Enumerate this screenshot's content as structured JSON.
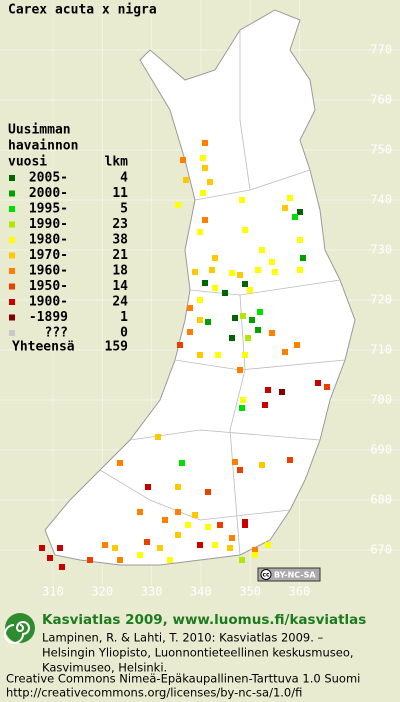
{
  "title": "Carex acuta x nigra",
  "legend": {
    "heading": [
      "Uusimman",
      "havainnon"
    ],
    "year_header": "vuosi",
    "count_header": "lkm",
    "items": [
      {
        "label": "2005-",
        "count": 4,
        "color": "#006400"
      },
      {
        "label": "2000-",
        "count": 11,
        "color": "#00a000"
      },
      {
        "label": "1995-",
        "count": 5,
        "color": "#00e000"
      },
      {
        "label": "1990-",
        "count": 23,
        "color": "#b0e800"
      },
      {
        "label": "1980-",
        "count": 38,
        "color": "#ffff00"
      },
      {
        "label": "1970-",
        "count": 21,
        "color": "#ffc800"
      },
      {
        "label": "1960-",
        "count": 18,
        "color": "#ff8000"
      },
      {
        "label": "1950-",
        "count": 14,
        "color": "#e84000"
      },
      {
        "label": "1900-",
        "count": 24,
        "color": "#c80000"
      },
      {
        "label": "-1899",
        "count": 1,
        "color": "#800000"
      },
      {
        "label": "???",
        "count": 0,
        "color": "#c8c8c8"
      }
    ],
    "total_label": "Yhteensä",
    "total": 159
  },
  "grid": {
    "northing": [
      770,
      760,
      750,
      740,
      730,
      720,
      710,
      700,
      690,
      680,
      670
    ],
    "easting": [
      310,
      320,
      330,
      340,
      350,
      360
    ]
  },
  "badge": {
    "cc": "cc",
    "license": "BY-NC-SA"
  },
  "footer": {
    "heading": "Kasviatlas 2009, www.luomus.fi/kasviatlas",
    "citation": [
      "Lampinen, R. & Lahti, T. 2010: Kasviatlas 2009. –",
      "Helsingin Yliopisto, Luonnontieteellinen keskusmuseo,",
      "Kasvimuseo, Helsinki."
    ],
    "license": [
      "Creative Commons Nimeä-Epäkaupallinen-Tarttuva 1.0 Suomi",
      "http://creativecommons.org/licenses/by-nc-sa/1.0/fi"
    ]
  }
}
